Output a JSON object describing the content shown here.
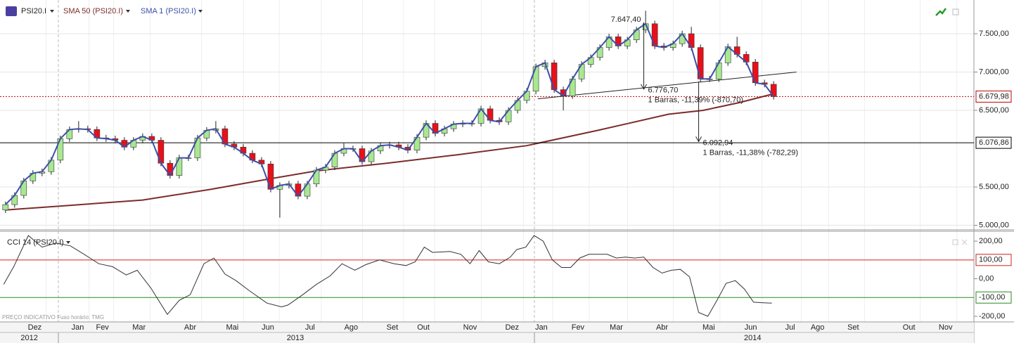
{
  "toolbar": {
    "symbol": "PSI20.I"
  },
  "footer_note": "PREÇO INDICATIVO   Fuso horário: TMG",
  "chart_data": [
    {
      "type": "candlestick",
      "xlim": [
        -0.6,
        105.9
      ],
      "ylim": [
        4950,
        7940
      ],
      "yticks": [
        {
          "value": 5000,
          "label": "5.000,00"
        },
        {
          "value": 5500,
          "label": "5.500,00"
        },
        {
          "value": 6500,
          "label": "6.500,00"
        },
        {
          "value": 7000,
          "label": "7.000,00"
        },
        {
          "value": 7500,
          "label": "7.500,00"
        }
      ],
      "grid": true,
      "xticks": [
        {
          "value": 3.2,
          "label": "Dez"
        },
        {
          "value": 7.9,
          "label": "Jan"
        },
        {
          "value": 10.6,
          "label": "Fev"
        },
        {
          "value": 14.6,
          "label": "Mar"
        },
        {
          "value": 20.2,
          "label": "Abr"
        },
        {
          "value": 24.8,
          "label": "Mai"
        },
        {
          "value": 28.7,
          "label": "Jun"
        },
        {
          "value": 33.3,
          "label": "Jul"
        },
        {
          "value": 37.8,
          "label": "Ago"
        },
        {
          "value": 42.3,
          "label": "Set"
        },
        {
          "value": 45.7,
          "label": "Out"
        },
        {
          "value": 50.8,
          "label": "Nov"
        },
        {
          "value": 55.4,
          "label": "Dez"
        },
        {
          "value": 58.6,
          "label": "Jan"
        },
        {
          "value": 62.6,
          "label": "Fev"
        },
        {
          "value": 66.8,
          "label": "Mar"
        },
        {
          "value": 71.8,
          "label": "Abr"
        },
        {
          "value": 76.9,
          "label": "Mai"
        },
        {
          "value": 81.5,
          "label": "Jun"
        },
        {
          "value": 85.8,
          "label": "Jul"
        },
        {
          "value": 88.8,
          "label": "Ago"
        },
        {
          "value": 92.7,
          "label": "Set"
        },
        {
          "value": 98.8,
          "label": "Out"
        },
        {
          "value": 102.8,
          "label": "Nov"
        }
      ],
      "year_ticks": [
        {
          "value": 2.6,
          "label": "2012"
        },
        {
          "value": 31.7,
          "label": "2013"
        },
        {
          "value": 81.7,
          "label": "2014"
        }
      ],
      "x": [
        0,
        1,
        2,
        3,
        4,
        5,
        6,
        7,
        8,
        9,
        10,
        11,
        12,
        13,
        14,
        15,
        16,
        17,
        18,
        19,
        20,
        21,
        22,
        23,
        24,
        25,
        26,
        27,
        28,
        29,
        30,
        31,
        32,
        33,
        34,
        35,
        36,
        37,
        38,
        39,
        40,
        41,
        42,
        43,
        44,
        45,
        46,
        47,
        48,
        49,
        50,
        51,
        52,
        53,
        54,
        55,
        56,
        57,
        58,
        59,
        60,
        61,
        62,
        63,
        64,
        65,
        66,
        67,
        68,
        69,
        70,
        71,
        72,
        73,
        74,
        75,
        76,
        77,
        78,
        79,
        80,
        81,
        82,
        83,
        84
      ],
      "candles": {
        "name": "PSI20.I",
        "up_color": "#a8e890",
        "down_color": "#e8101a",
        "open": [
          5200,
          5270,
          5390,
          5580,
          5680,
          5700,
          5850,
          6130,
          6250,
          6260,
          6250,
          6140,
          6130,
          6110,
          6020,
          6110,
          6160,
          6110,
          5810,
          5650,
          5880,
          5880,
          6140,
          6240,
          6260,
          6060,
          6020,
          5940,
          5850,
          5800,
          5470,
          5520,
          5540,
          5380,
          5540,
          5720,
          5760,
          5940,
          6000,
          6000,
          5830,
          5970,
          6040,
          6050,
          6020,
          5980,
          6150,
          6330,
          6200,
          6260,
          6320,
          6330,
          6330,
          6520,
          6370,
          6350,
          6500,
          6630,
          6750,
          7070,
          7120,
          6770,
          6690,
          6910,
          7100,
          7190,
          7320,
          7460,
          7340,
          7420,
          7550,
          7630,
          7340,
          7320,
          7370,
          7500,
          7320,
          6910,
          6910,
          7120,
          7330,
          7230,
          7130,
          6860,
          6840
        ],
        "high": [
          5310,
          5430,
          5620,
          5720,
          5740,
          5890,
          6170,
          6290,
          6360,
          6300,
          6290,
          6180,
          6170,
          6150,
          6150,
          6200,
          6200,
          6150,
          5850,
          5920,
          5920,
          6180,
          6280,
          6360,
          6300,
          6100,
          6060,
          5980,
          5890,
          5840,
          5560,
          5580,
          5580,
          5580,
          5760,
          5800,
          5980,
          6070,
          6040,
          6040,
          6010,
          6080,
          6090,
          6090,
          6060,
          6190,
          6370,
          6370,
          6300,
          6360,
          6370,
          6370,
          6560,
          6560,
          6410,
          6540,
          6670,
          6790,
          7110,
          7160,
          7160,
          6810,
          6950,
          7140,
          7230,
          7360,
          7500,
          7500,
          7460,
          7590,
          7800,
          7670,
          7380,
          7410,
          7540,
          7590,
          7360,
          6950,
          7160,
          7370,
          7460,
          7270,
          7170,
          6900,
          6880
        ],
        "low": [
          5160,
          5230,
          5350,
          5540,
          5640,
          5660,
          5810,
          6090,
          6210,
          6210,
          6100,
          6090,
          6070,
          5980,
          5980,
          6070,
          6070,
          5770,
          5610,
          5610,
          5840,
          5840,
          6100,
          6200,
          6020,
          5980,
          5900,
          5810,
          5760,
          5430,
          5100,
          5480,
          5340,
          5340,
          5500,
          5680,
          5720,
          5900,
          5960,
          5790,
          5790,
          5930,
          6000,
          5980,
          5940,
          5940,
          6110,
          6160,
          6160,
          6220,
          6280,
          6290,
          6290,
          6330,
          6310,
          6310,
          6460,
          6590,
          6710,
          7030,
          6730,
          6500,
          6650,
          6870,
          7060,
          7150,
          7280,
          7300,
          7300,
          7380,
          7510,
          7300,
          7280,
          7280,
          7330,
          7280,
          6870,
          6870,
          6870,
          7080,
          7190,
          7090,
          6820,
          6800,
          6640
        ],
        "close": [
          5270,
          5390,
          5580,
          5680,
          5700,
          5850,
          6130,
          6250,
          6260,
          6250,
          6140,
          6130,
          6110,
          6020,
          6110,
          6160,
          6110,
          5810,
          5650,
          5880,
          5880,
          6140,
          6240,
          6260,
          6060,
          6020,
          5940,
          5850,
          5800,
          5470,
          5520,
          5540,
          5380,
          5540,
          5720,
          5760,
          5940,
          6000,
          6000,
          5830,
          5970,
          6040,
          6050,
          6020,
          5980,
          6150,
          6330,
          6200,
          6260,
          6320,
          6330,
          6330,
          6520,
          6370,
          6350,
          6500,
          6630,
          6750,
          7070,
          7120,
          6770,
          6690,
          6910,
          7100,
          7190,
          7320,
          7460,
          7340,
          7420,
          7550,
          7630,
          7340,
          7320,
          7370,
          7500,
          7320,
          6910,
          6910,
          7120,
          7330,
          7230,
          7130,
          6860,
          6840,
          6680
        ]
      },
      "sma": [
        {
          "name": "SMA 50 (PSI20.I)",
          "color": "#7b2c2c",
          "x": [
            0,
            7,
            15,
            22.5,
            28.6,
            34,
            41.7,
            49.4,
            57,
            64.8,
            72.5,
            76.3,
            80.2,
            83.8
          ],
          "values": [
            5200,
            5260,
            5330,
            5470,
            5600,
            5710,
            5810,
            5920,
            6040,
            6240,
            6450,
            6500,
            6600,
            6710
          ]
        },
        {
          "name": "SMA 1 (PSI20.I)",
          "color": "#3d4fa8"
        }
      ],
      "levels": [
        {
          "value": 6679.98,
          "label": "6.679,98",
          "color": "#c00000",
          "dashed": true
        },
        {
          "value": 6076.86,
          "label": "6.076,86",
          "color": "#000000",
          "dashed": false
        }
      ],
      "trendline": {
        "x": [
          58.2,
          86.5
        ],
        "values": [
          6650,
          7000
        ]
      },
      "measures": [
        {
          "x": 69.8,
          "from": {
            "value": 7647.4,
            "label": "7.647,40"
          },
          "to": {
            "value": 6776.7,
            "label": "6.776,70"
          },
          "note": "1 Barras, -11,39% (-870,70)"
        },
        {
          "x": 75.8,
          "from": 6875.23,
          "to": {
            "value": 6092.94,
            "label": "6.092,94"
          },
          "note": "1 Barras, -11,38% (-782,29)"
        }
      ]
    },
    {
      "type": "line",
      "title": "CCI 14 (PSI20.I)",
      "color": "#333333",
      "ylim": [
        -230,
        249
      ],
      "yticks": [
        {
          "value": 200,
          "label": "200,00"
        },
        {
          "value": 0,
          "label": "0,00"
        },
        {
          "value": -200,
          "label": "-200,00"
        }
      ],
      "levels": [
        {
          "value": 100,
          "label": "100,00",
          "color": "#d02020"
        },
        {
          "value": -100,
          "label": "-100,00",
          "color": "#2a8a2a"
        }
      ],
      "x": [
        -0.2,
        0.9,
        2.5,
        4,
        5.5,
        7.1,
        8.6,
        10.2,
        11.7,
        13.2,
        14.4,
        15.9,
        17.7,
        19,
        20.2,
        21.7,
        22.8,
        24,
        25.2,
        26.7,
        28.6,
        30.2,
        30.9,
        32.5,
        34,
        35.5,
        36.8,
        38.2,
        39.4,
        40.9,
        42.5,
        43.8,
        44.8,
        45.8,
        46.7,
        48.6,
        49.8,
        50.8,
        51.8,
        52.8,
        54,
        55.2,
        55.9,
        56.9,
        57.8,
        58.8,
        59.8,
        60.8,
        61.8,
        62.8,
        63.8,
        64.8,
        65.8,
        66.8,
        67.8,
        68.8,
        69.8,
        70.8,
        71.8,
        72.8,
        73.8,
        74.8,
        75.8,
        76.8,
        77.8,
        78.8,
        79.8,
        80.8,
        81.8,
        82.8,
        83.8
      ],
      "values": [
        -30,
        64,
        230,
        168,
        190,
        175,
        130,
        80,
        64,
        20,
        45,
        -50,
        -190,
        -115,
        -85,
        80,
        110,
        25,
        -10,
        -65,
        -130,
        -150,
        -140,
        -85,
        -30,
        15,
        80,
        45,
        75,
        100,
        80,
        70,
        90,
        168,
        140,
        145,
        130,
        80,
        150,
        90,
        80,
        115,
        155,
        168,
        230,
        200,
        100,
        60,
        60,
        110,
        130,
        130,
        130,
        110,
        115,
        110,
        115,
        60,
        30,
        45,
        50,
        10,
        -180,
        -200,
        -115,
        -25,
        -10,
        -55,
        -125,
        -128,
        -130
      ]
    }
  ]
}
